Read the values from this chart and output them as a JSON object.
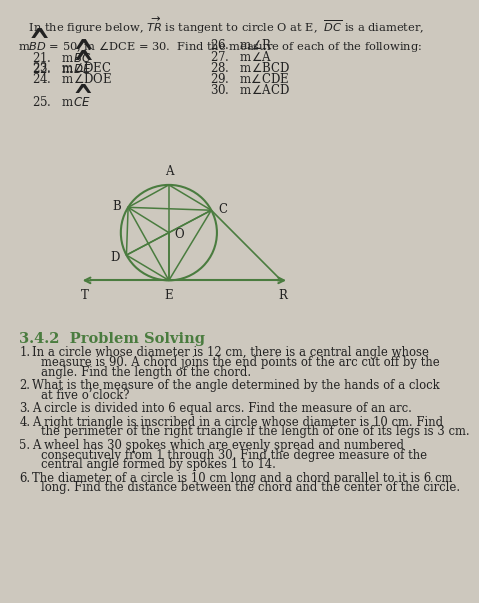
{
  "bg_color": "#cdc8be",
  "text_color": "#222222",
  "green_color": "#4a7c3f",
  "header_line1": "   In the figure below, $\\overrightarrow{TR}$ is tangent to circle O at E,  $\\overline{DC}$ is a diameter,",
  "header_line2": "m$\\widehat{BD}$ = 50, m $\\angle$DCE = 30.  Find the measure of each of the following:",
  "items_left": [
    "21.   m$\\widehat{BC}$",
    "22.   m$\\widehat{DE}$",
    "23.   m$\\angle$DEC",
    "24.   m$\\angle$DOE",
    "25.   m$\\widehat{CE}$"
  ],
  "items_right": [
    "26.   m$\\angle$R",
    "27.   m$\\angle$A",
    "28.   m$\\angle$BCD",
    "29.   m$\\angle$CDE",
    "30.   m$\\angle$ACD"
  ],
  "section_title": "3.4.2  Problem Solving",
  "problems": [
    [
      "1.",
      "In a circle whose diameter is 12 cm, there is a central angle whose",
      "measure is 90. A chord joins the end points of the arc cut off by the",
      "angle. Find the length of the chord."
    ],
    [
      "2.",
      "What is the measure of the angle determined by the hands of a clock",
      "at five o’clock?"
    ],
    [
      "3.",
      "A circle is divided into 6 equal arcs. Find the measure of an arc."
    ],
    [
      "4.",
      "A right triangle is inscribed in a circle whose diameter is 10 cm. Find",
      "the perimeter of the right triangle if the length of one of its legs is 3 cm."
    ],
    [
      "5.",
      "A wheel has 30 spokes which are evenly spread and numbered",
      "consecutively from 1 through 30. Find the degree measure of the",
      "central angle formed by spokes 1 to 14."
    ],
    [
      "6.",
      "The diameter of a circle is 10 cm long and a chord parallel to it is 6 cm",
      "long. Find the distance between the chord and the center of the circle."
    ]
  ]
}
